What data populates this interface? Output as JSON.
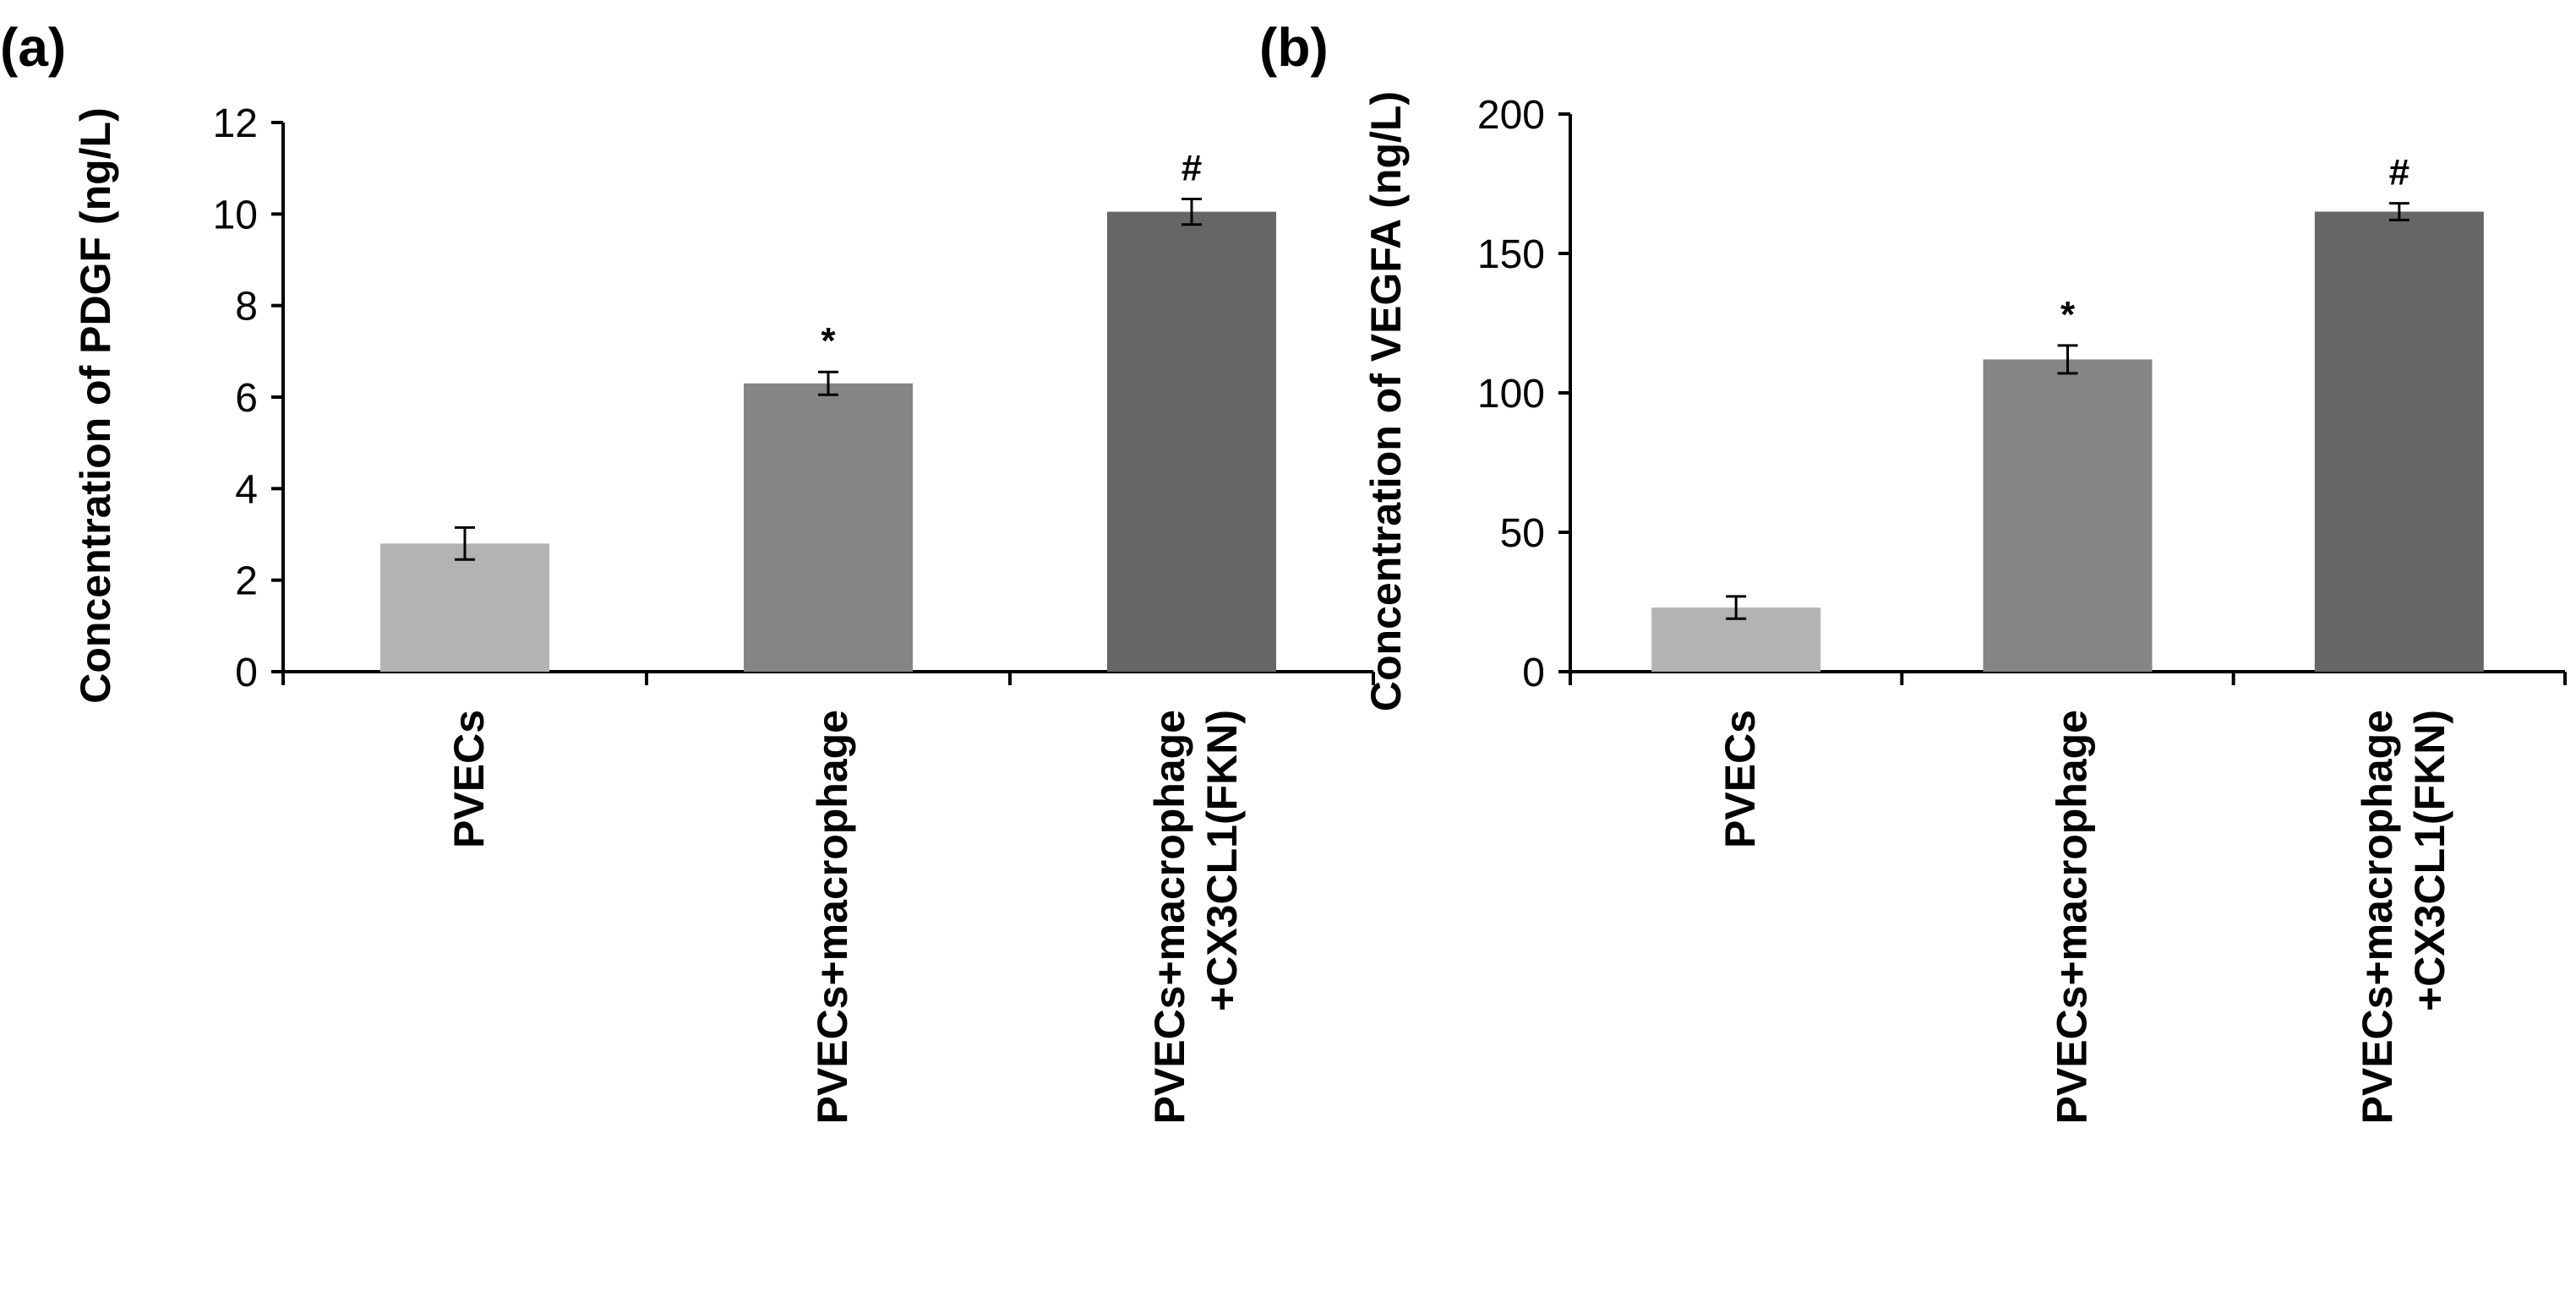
{
  "panels": [
    {
      "id": "a",
      "label": "(a)",
      "chart_data": {
        "type": "bar",
        "categories": [
          "PVECs",
          "PVECs+macrophage",
          "PVECs+macrophage\n+CX3CL1(FKN)"
        ],
        "values": [
          2.8,
          6.3,
          10.05
        ],
        "errors": [
          0.35,
          0.25,
          0.28
        ],
        "annotations": [
          "",
          "*",
          "#"
        ],
        "bar_colors": [
          "#b3b3b3",
          "#858585",
          "#666666"
        ],
        "ylabel": "Concentration of PDGF (ng/L)",
        "ylim": [
          0,
          12
        ],
        "yticks": [
          0,
          2,
          4,
          6,
          8,
          10,
          12
        ],
        "ytick_labels": [
          "0",
          "2",
          "4",
          "6",
          "8",
          "10",
          "12"
        ]
      }
    },
    {
      "id": "b",
      "label": "(b)",
      "chart_data": {
        "type": "bar",
        "categories": [
          "PVECs",
          "PVECs+macrophage",
          "PVECs+macrophage\n+CX3CL1(FKN)"
        ],
        "values": [
          23,
          112,
          165
        ],
        "errors": [
          4,
          5,
          3
        ],
        "annotations": [
          "",
          "*",
          "#"
        ],
        "bar_colors": [
          "#b3b3b3",
          "#858585",
          "#666666"
        ],
        "ylabel": "Concentration of VEGFA (ng/L)",
        "ylim": [
          0,
          200
        ],
        "yticks": [
          0,
          50,
          100,
          150,
          200
        ],
        "ytick_labels": [
          "0",
          "50",
          "100",
          "150",
          "200"
        ]
      }
    }
  ]
}
